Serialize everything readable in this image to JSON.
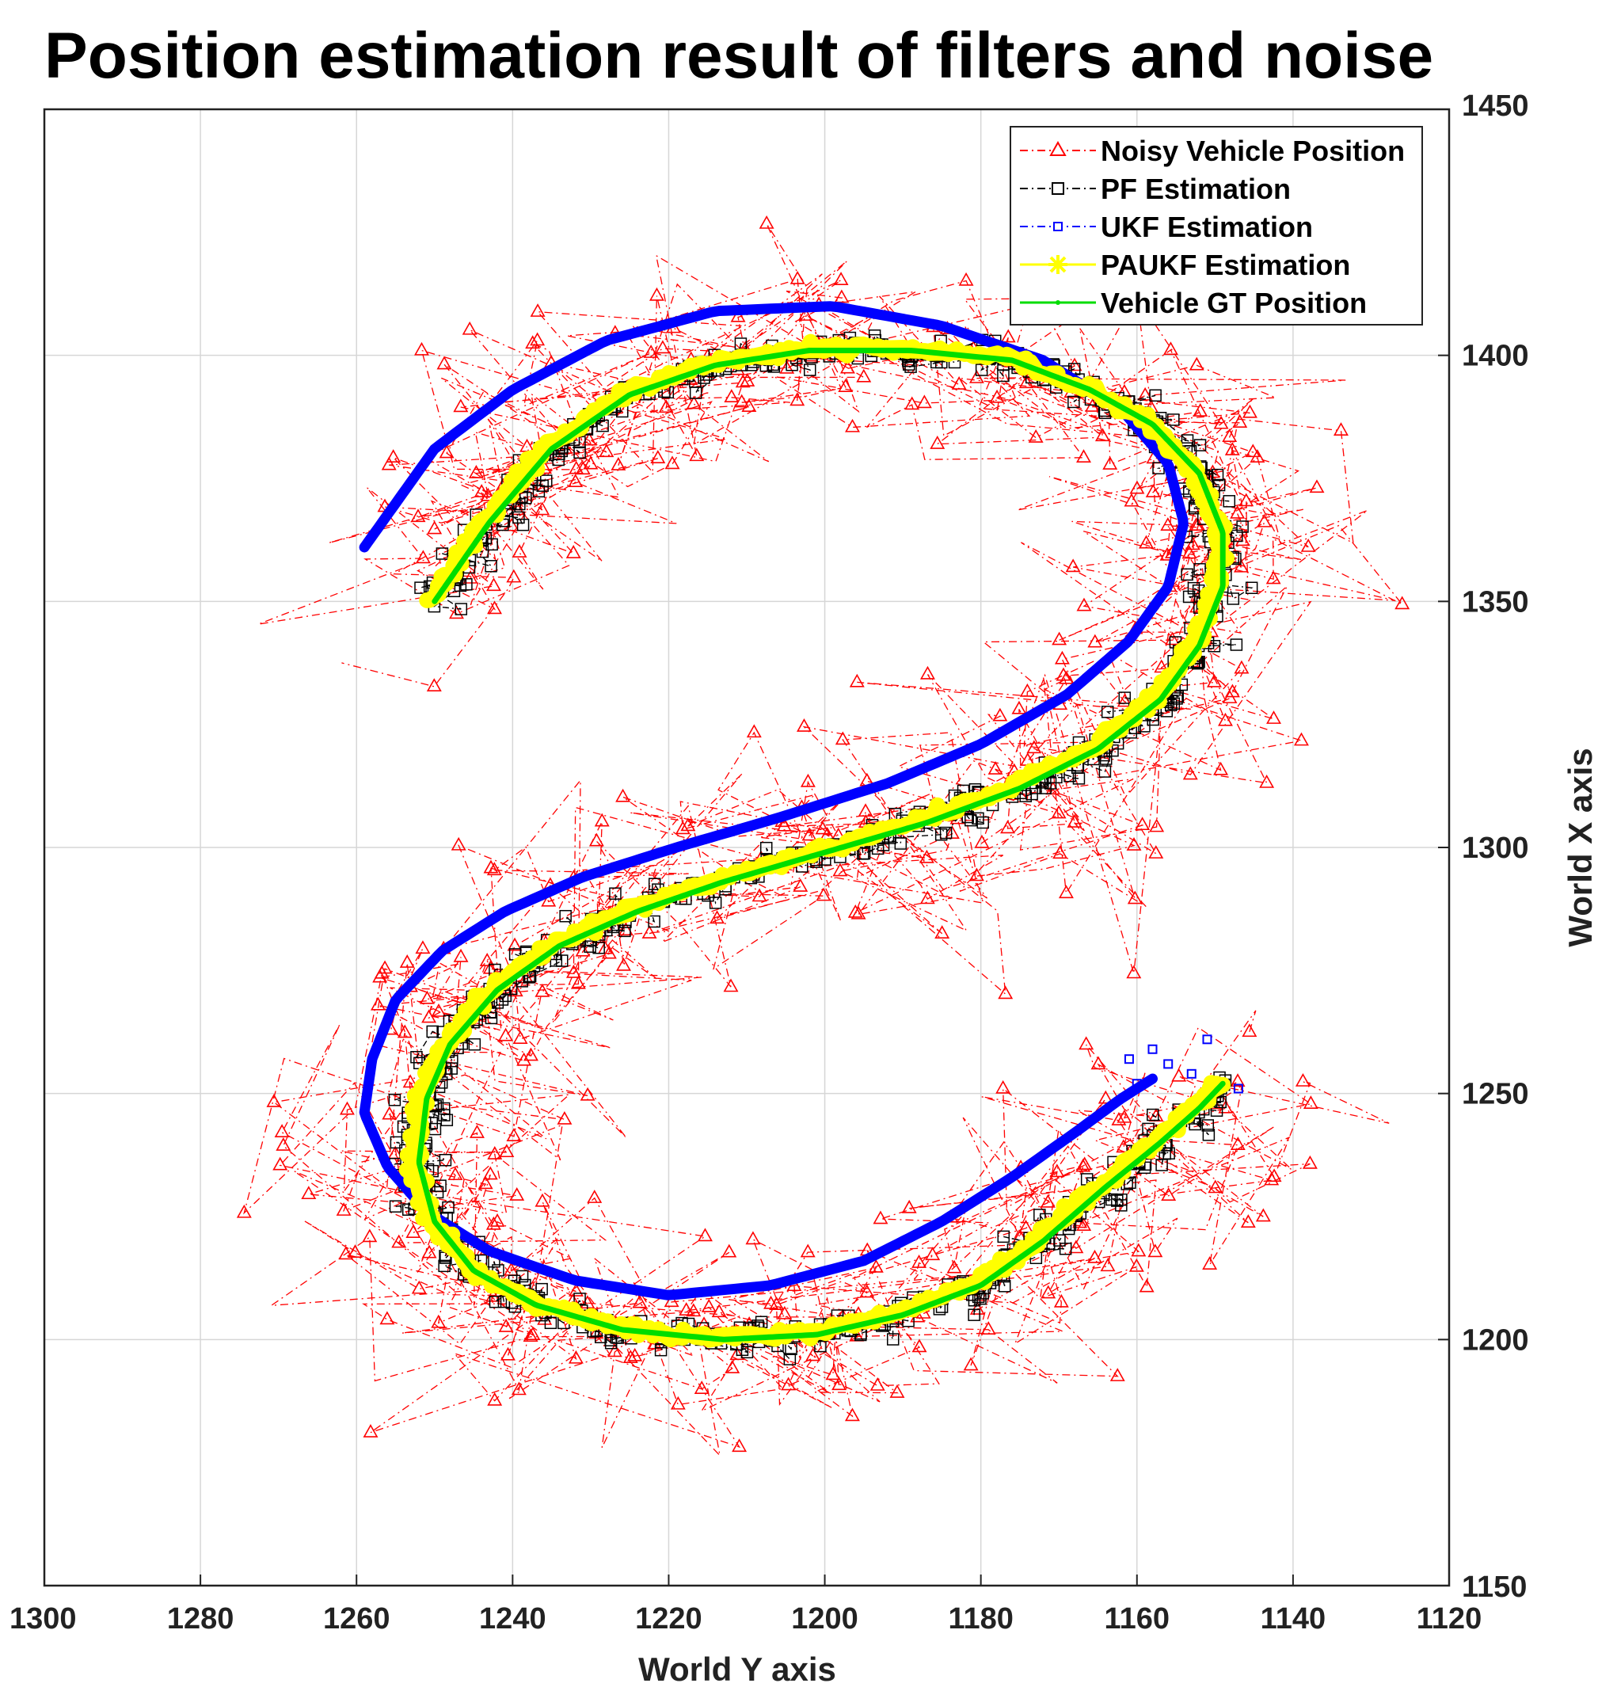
{
  "chart_data": {
    "type": "line",
    "title": "Position estimation result of filters and noise",
    "xlabel": "World Y axis",
    "ylabel": "World X axis",
    "xlim": [
      1300,
      1120
    ],
    "ylim": [
      1150,
      1450
    ],
    "x_reversed": true,
    "y_axis_side": "right",
    "grid": true,
    "xticks": [
      1300,
      1280,
      1260,
      1240,
      1220,
      1200,
      1180,
      1160,
      1140,
      1120
    ],
    "yticks": [
      1150,
      1200,
      1250,
      1300,
      1350,
      1400,
      1450
    ],
    "legend_position": "top-right",
    "series": [
      {
        "name": "Noisy Vehicle Position",
        "color": "#ff0000",
        "style": "dash-dot",
        "marker": "triangle",
        "noise_std": 11,
        "path": "ground_truth_plus_noise"
      },
      {
        "name": "PF Estimation",
        "color": "#000000",
        "style": "dash-dot",
        "marker": "square",
        "noise_std": 1.6,
        "path": "ground_truth_plus_noise"
      },
      {
        "name": "UKF Estimation",
        "color": "#0000ff",
        "style": "dash-dot",
        "marker": "small-square",
        "points": [
          [
            1158,
            1253
          ],
          [
            1162,
            1249
          ],
          [
            1168,
            1242
          ],
          [
            1176,
            1233
          ],
          [
            1185,
            1224
          ],
          [
            1195,
            1216
          ],
          [
            1207,
            1211
          ],
          [
            1220,
            1209
          ],
          [
            1232,
            1212
          ],
          [
            1243,
            1218
          ],
          [
            1251,
            1226
          ],
          [
            1256,
            1235
          ],
          [
            1259,
            1246
          ],
          [
            1258,
            1257
          ],
          [
            1255,
            1269
          ],
          [
            1249,
            1279
          ],
          [
            1241,
            1287
          ],
          [
            1231,
            1294
          ],
          [
            1219,
            1300
          ],
          [
            1206,
            1306
          ],
          [
            1192,
            1313
          ],
          [
            1180,
            1321
          ],
          [
            1169,
            1331
          ],
          [
            1161,
            1342
          ],
          [
            1156,
            1353
          ],
          [
            1154,
            1366
          ],
          [
            1156,
            1378
          ],
          [
            1162,
            1389
          ],
          [
            1172,
            1399
          ],
          [
            1185,
            1406
          ],
          [
            1199,
            1410
          ],
          [
            1214,
            1409
          ],
          [
            1228,
            1403
          ],
          [
            1240,
            1393
          ],
          [
            1250,
            1381
          ],
          [
            1259,
            1361
          ]
        ]
      },
      {
        "name": "PAUKF Estimation",
        "color": "#ffff00",
        "style": "solid",
        "marker": "star",
        "noise_std": 0.5,
        "path": "ground_truth"
      },
      {
        "name": "Vehicle GT Position",
        "color": "#00dd00",
        "style": "solid",
        "marker": "dot",
        "points": [
          [
            1149,
            1252
          ],
          [
            1152,
            1247
          ],
          [
            1157,
            1240
          ],
          [
            1164,
            1231
          ],
          [
            1172,
            1220
          ],
          [
            1180,
            1211
          ],
          [
            1190,
            1205
          ],
          [
            1201,
            1201
          ],
          [
            1213,
            1200
          ],
          [
            1226,
            1202
          ],
          [
            1237,
            1207
          ],
          [
            1245,
            1214
          ],
          [
            1250,
            1224
          ],
          [
            1252,
            1236
          ],
          [
            1251,
            1249
          ],
          [
            1248,
            1260
          ],
          [
            1242,
            1271
          ],
          [
            1234,
            1280
          ],
          [
            1224,
            1287
          ],
          [
            1213,
            1293
          ],
          [
            1200,
            1299
          ],
          [
            1187,
            1305
          ],
          [
            1175,
            1312
          ],
          [
            1165,
            1320
          ],
          [
            1157,
            1330
          ],
          [
            1152,
            1341
          ],
          [
            1149,
            1353
          ],
          [
            1149,
            1364
          ],
          [
            1152,
            1376
          ],
          [
            1158,
            1386
          ],
          [
            1166,
            1393
          ],
          [
            1176,
            1399
          ],
          [
            1189,
            1401
          ],
          [
            1202,
            1401
          ],
          [
            1214,
            1398
          ],
          [
            1225,
            1392
          ],
          [
            1235,
            1381
          ],
          [
            1243,
            1366
          ],
          [
            1250,
            1350
          ]
        ]
      }
    ]
  }
}
